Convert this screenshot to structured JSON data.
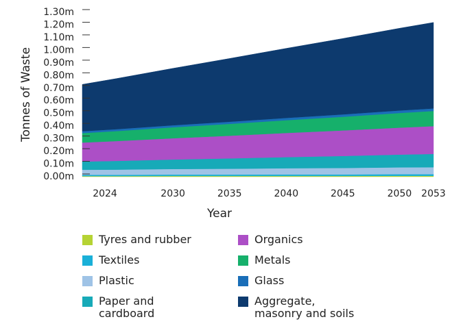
{
  "chart_data": {
    "type": "stacked-area",
    "x_label": "Year",
    "y_label": "Tonnes of Waste",
    "x": [
      2022,
      2025,
      2030,
      2035,
      2040,
      2045,
      2050,
      2053
    ],
    "xlim": [
      2022,
      2053
    ],
    "xticks": [
      2024,
      2030,
      2035,
      2040,
      2045,
      2050,
      2053
    ],
    "ylim": [
      0,
      1.3
    ],
    "yticks": [
      {
        "value": 0,
        "label": "0.00m"
      },
      {
        "value": 0.1,
        "label": "0.10m"
      },
      {
        "value": 0.2,
        "label": "0.20m"
      },
      {
        "value": 0.3,
        "label": "0.30m"
      },
      {
        "value": 0.4,
        "label": "0.40m"
      },
      {
        "value": 0.5,
        "label": "0.50m"
      },
      {
        "value": 0.6,
        "label": "0.60m"
      },
      {
        "value": 0.7,
        "label": "0.70m"
      },
      {
        "value": 0.8,
        "label": "0.80m"
      },
      {
        "value": 0.9,
        "label": "0.90m"
      },
      {
        "value": 1.0,
        "label": "1.00m"
      },
      {
        "value": 1.1,
        "label": "1.10m"
      },
      {
        "value": 1.2,
        "label": "1.20m"
      },
      {
        "value": 1.3,
        "label": "1.30m"
      }
    ],
    "series": [
      {
        "name": "Tyres and rubber",
        "color": "#b5d334",
        "values": [
          0.005,
          0.005,
          0.006,
          0.006,
          0.006,
          0.006,
          0.007,
          0.007
        ]
      },
      {
        "name": "Textiles",
        "color": "#1ab0d8",
        "values": [
          0.01,
          0.01,
          0.011,
          0.011,
          0.012,
          0.012,
          0.013,
          0.013
        ]
      },
      {
        "name": "Plastic",
        "color": "#9fc3e6",
        "values": [
          0.04,
          0.041,
          0.044,
          0.046,
          0.049,
          0.051,
          0.054,
          0.055
        ]
      },
      {
        "name": "Paper and cardboard",
        "color": "#17aab8",
        "values": [
          0.065,
          0.069,
          0.075,
          0.082,
          0.088,
          0.095,
          0.101,
          0.105
        ]
      },
      {
        "name": "Organics",
        "color": "#ac4fc6",
        "values": [
          0.15,
          0.157,
          0.168,
          0.179,
          0.191,
          0.202,
          0.213,
          0.22
        ]
      },
      {
        "name": "Metals",
        "color": "#16b06b",
        "values": [
          0.075,
          0.079,
          0.087,
          0.094,
          0.101,
          0.108,
          0.116,
          0.12
        ]
      },
      {
        "name": "Glass",
        "color": "#1a6eb8",
        "values": [
          0.015,
          0.015,
          0.016,
          0.017,
          0.018,
          0.019,
          0.02,
          0.02
        ]
      },
      {
        "name": "Aggregate, masonry and soils",
        "color": "#0d3a6e",
        "values": [
          0.37,
          0.4,
          0.45,
          0.5,
          0.55,
          0.6,
          0.65,
          0.68
        ]
      }
    ]
  }
}
